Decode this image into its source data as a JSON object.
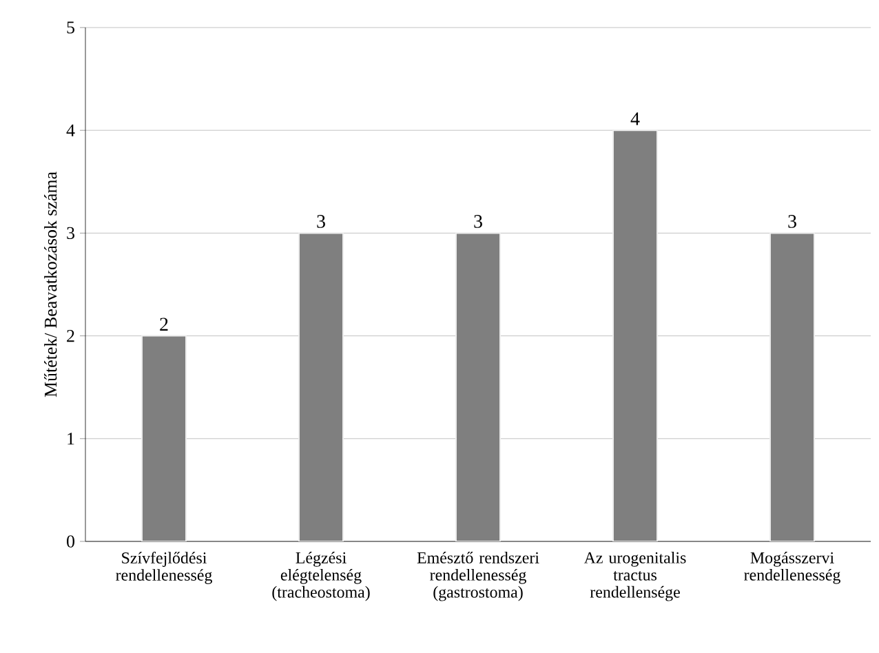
{
  "chart_data": {
    "type": "bar",
    "ylabel": "Műtétek/ Beavatkozások száma",
    "categories": [
      "Szívfejlődési rendellenesség",
      "Légzési elégtelenség (tracheostoma)",
      "Emésztő rendszeri rendellenesség (gastrostoma)",
      "Az urogenitalis tractus rendellensége",
      "Mogásszervi rendellenesség"
    ],
    "values": [
      2,
      3,
      3,
      4,
      3
    ],
    "color": "#7f7f7f",
    "ylim": [
      0,
      5
    ],
    "yticks": [
      0,
      1,
      2,
      3,
      4,
      5
    ],
    "grid": "y",
    "data_labels": true
  }
}
